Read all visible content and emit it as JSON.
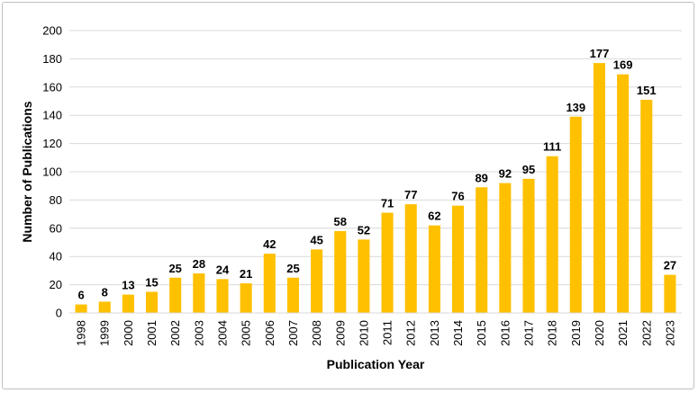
{
  "chart_data": {
    "type": "bar",
    "title": "",
    "xlabel": "Publication Year",
    "ylabel": "Number of Publications",
    "ylim": [
      0,
      200
    ],
    "yticks": [
      0,
      20,
      40,
      60,
      80,
      100,
      120,
      140,
      160,
      180,
      200
    ],
    "grid": true,
    "legend": "none",
    "bar_color": "#FFC000",
    "categories": [
      "1998",
      "1999",
      "2000",
      "2001",
      "2002",
      "2003",
      "2004",
      "2005",
      "2006",
      "2007",
      "2008",
      "2009",
      "2010",
      "2011",
      "2012",
      "2013",
      "2014",
      "2015",
      "2016",
      "2017",
      "2018",
      "2019",
      "2020",
      "2021",
      "2022",
      "2023"
    ],
    "values": [
      6,
      8,
      13,
      15,
      25,
      28,
      24,
      21,
      42,
      25,
      45,
      58,
      52,
      71,
      77,
      62,
      76,
      89,
      92,
      95,
      111,
      139,
      177,
      169,
      151,
      27
    ],
    "data_labels": true
  }
}
